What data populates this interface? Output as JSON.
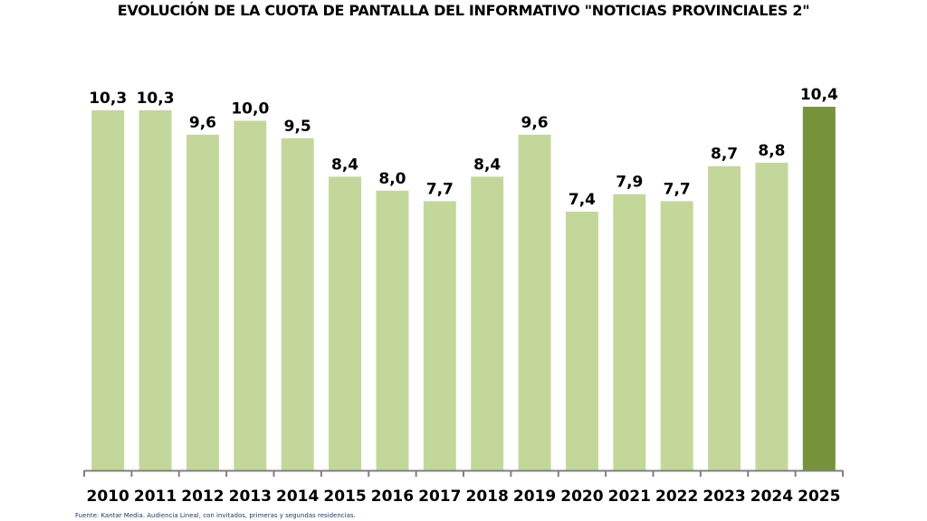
{
  "chart_data": {
    "type": "bar",
    "title": "EVOLUCIÓN DE LA CUOTA DE PANTALLA DEL INFORMATIVO \"NOTICIAS PROVINCIALES 2\"",
    "xlabel": "",
    "ylabel": "",
    "ylim": [
      0,
      13.5
    ],
    "grid": false,
    "categories": [
      "2010",
      "2011",
      "2012",
      "2013",
      "2014",
      "2015",
      "2016",
      "2017",
      "2018",
      "2019",
      "2020",
      "2021",
      "2022",
      "2023",
      "2024",
      "2025"
    ],
    "values": [
      10.3,
      10.3,
      9.6,
      10.0,
      9.5,
      8.4,
      8.0,
      7.7,
      8.4,
      9.6,
      7.4,
      7.9,
      7.7,
      8.7,
      8.8,
      10.4
    ],
    "value_labels": [
      "10,3",
      "10,3",
      "9,6",
      "10,0",
      "9,5",
      "8,4",
      "8,0",
      "7,7",
      "8,4",
      "9,6",
      "7,4",
      "7,9",
      "7,7",
      "8,7",
      "8,8",
      "10,4"
    ],
    "highlight_index": 15,
    "colors": {
      "bar": "#c4d79b",
      "highlight": "#76933c",
      "axis": "#808080"
    },
    "footnote": "Fuente: Kantar Media. Audiencia Lineal, con invitados, primeras y segundas residencias."
  }
}
